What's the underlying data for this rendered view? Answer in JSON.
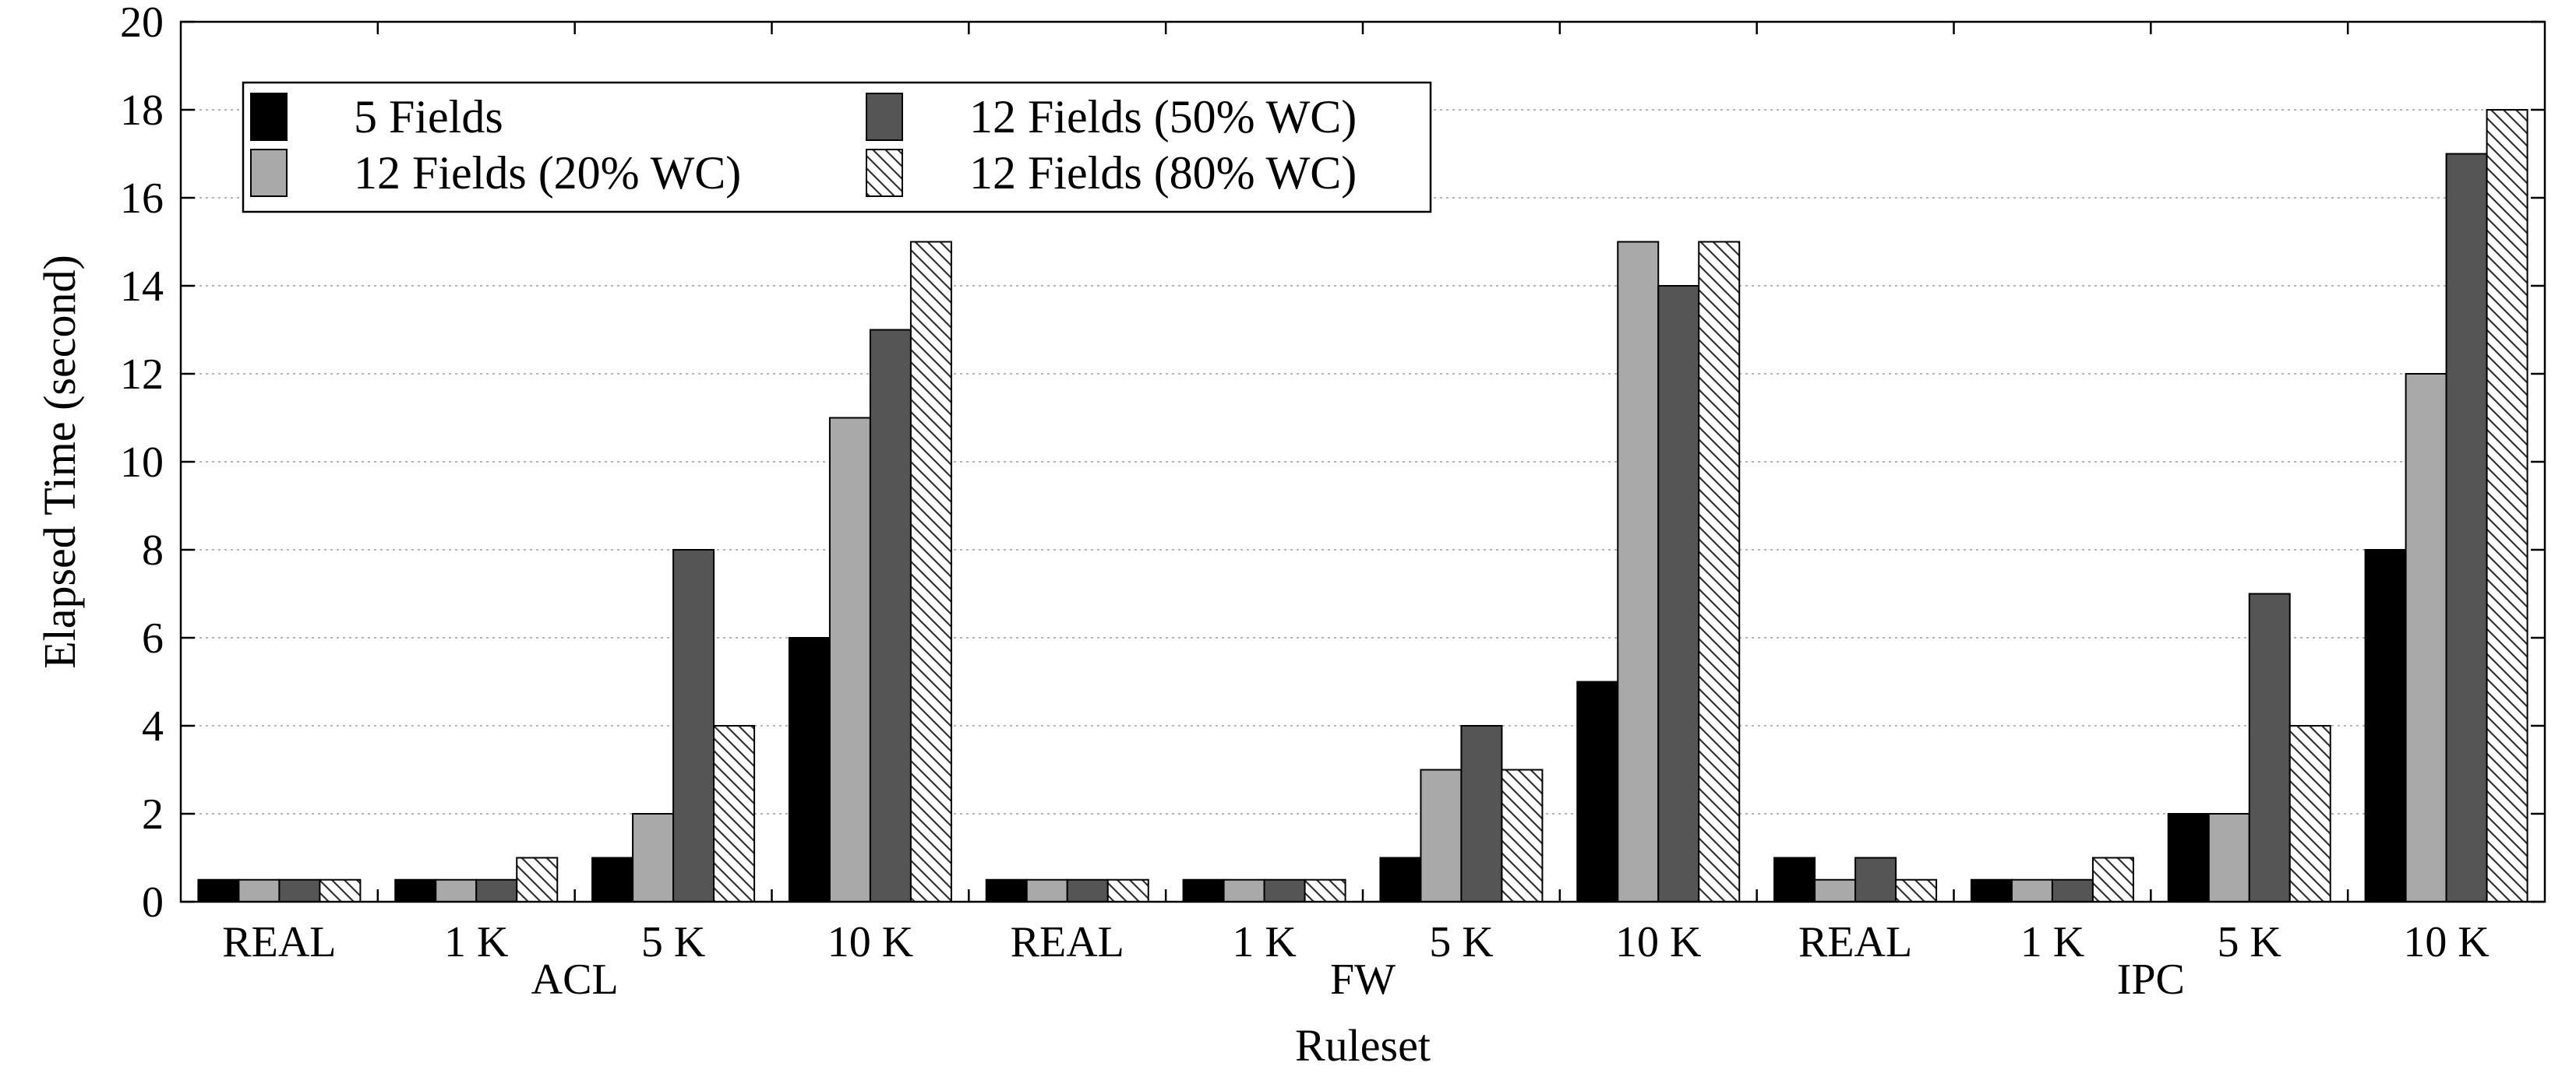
{
  "chart_data": {
    "type": "bar",
    "title": "",
    "xlabel": "Ruleset",
    "ylabel": "Elapsed Time (second)",
    "ylim": [
      0,
      20
    ],
    "yticks": [
      0,
      2,
      4,
      6,
      8,
      10,
      12,
      14,
      16,
      18,
      20
    ],
    "grid": "horizontal dotted",
    "legend_position": "top-left",
    "groups": [
      "ACL",
      "FW",
      "IPC"
    ],
    "categories": [
      "REAL",
      "1 K",
      "5 K",
      "10 K",
      "REAL",
      "1 K",
      "5 K",
      "10 K",
      "REAL",
      "1 K",
      "5 K",
      "10 K"
    ],
    "series": [
      {
        "name": "5 Fields",
        "style": "solid",
        "color": "#000000",
        "values": [
          0.5,
          0.5,
          1,
          6,
          0.5,
          0.5,
          1,
          5,
          1,
          0.5,
          2,
          8
        ]
      },
      {
        "name": "12 Fields (20% WC)",
        "style": "solid",
        "color": "#a9a9a9",
        "values": [
          0.5,
          0.5,
          2,
          11,
          0.5,
          0.5,
          3,
          15,
          0.5,
          0.5,
          2,
          12
        ]
      },
      {
        "name": "12 Fields (50% WC)",
        "style": "solid",
        "color": "#555555",
        "values": [
          0.5,
          0.5,
          8,
          13,
          0.5,
          0.5,
          4,
          14,
          1,
          0.5,
          7,
          17
        ]
      },
      {
        "name": "12 Fields (80% WC)",
        "style": "hatched",
        "color": "#ffffff",
        "values": [
          0.5,
          1,
          4,
          15,
          0.5,
          0.5,
          3,
          15,
          0.5,
          1,
          4,
          18
        ]
      }
    ]
  }
}
